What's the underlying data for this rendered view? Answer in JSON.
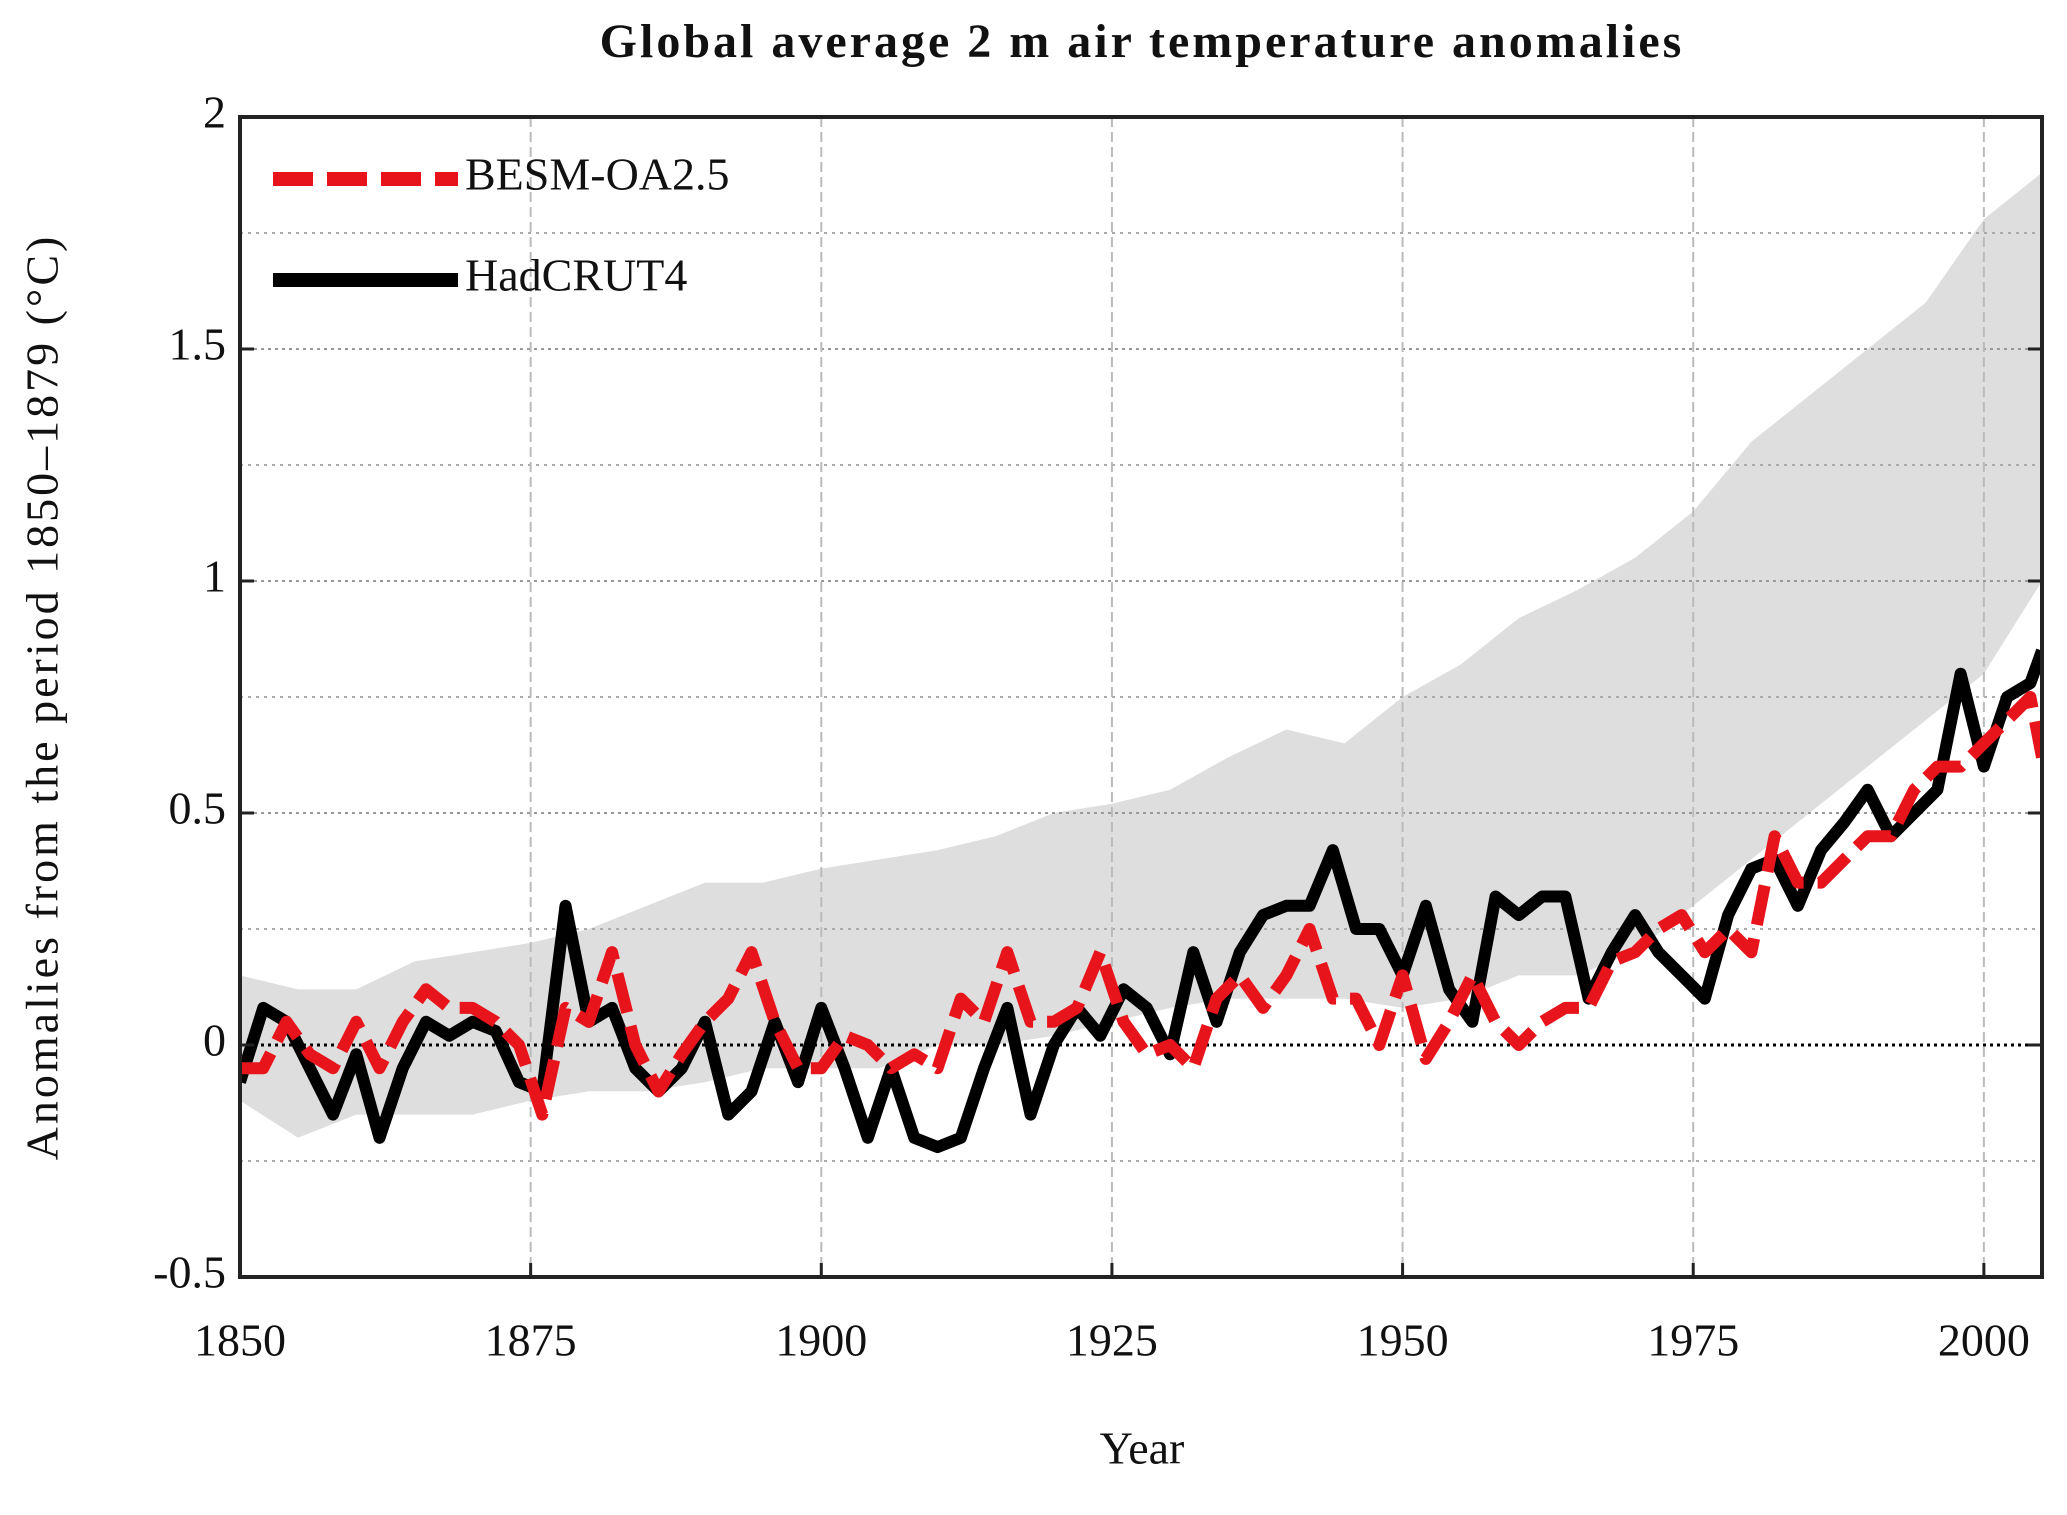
{
  "chart_data": {
    "type": "line",
    "title": "Global average 2 m air temperature anomalies",
    "x_label": "Year",
    "y_label": "Anomalies from the period 1850–1879 (°C)",
    "x": [
      1850,
      1852,
      1854,
      1856,
      1858,
      1860,
      1862,
      1864,
      1866,
      1868,
      1870,
      1872,
      1874,
      1876,
      1878,
      1880,
      1882,
      1884,
      1886,
      1888,
      1890,
      1892,
      1894,
      1896,
      1898,
      1900,
      1902,
      1904,
      1906,
      1908,
      1910,
      1912,
      1914,
      1916,
      1918,
      1920,
      1922,
      1924,
      1926,
      1928,
      1930,
      1932,
      1934,
      1936,
      1938,
      1940,
      1942,
      1944,
      1946,
      1948,
      1950,
      1952,
      1954,
      1956,
      1958,
      1960,
      1962,
      1964,
      1966,
      1968,
      1970,
      1972,
      1974,
      1976,
      1978,
      1980,
      1982,
      1984,
      1986,
      1988,
      1990,
      1992,
      1994,
      1996,
      1998,
      2000,
      2002,
      2004,
      2005
    ],
    "series": [
      {
        "name": "BESM-OA2.5",
        "color": "#e8141b",
        "dashed": true,
        "values": [
          -0.05,
          -0.05,
          0.05,
          -0.02,
          -0.05,
          0.05,
          -0.05,
          0.05,
          0.12,
          0.08,
          0.08,
          0.05,
          0.0,
          -0.15,
          0.08,
          0.05,
          0.2,
          0.0,
          -0.1,
          -0.02,
          0.05,
          0.1,
          0.2,
          0.05,
          -0.05,
          -0.05,
          0.02,
          0.0,
          -0.05,
          -0.02,
          -0.05,
          0.1,
          0.05,
          0.2,
          0.05,
          0.05,
          0.08,
          0.2,
          0.05,
          -0.02,
          0.0,
          -0.05,
          0.1,
          0.15,
          0.08,
          0.15,
          0.25,
          0.1,
          0.1,
          0.0,
          0.15,
          -0.03,
          0.05,
          0.15,
          0.05,
          0.0,
          0.05,
          0.08,
          0.08,
          0.18,
          0.2,
          0.25,
          0.28,
          0.2,
          0.25,
          0.2,
          0.45,
          0.35,
          0.35,
          0.4,
          0.45,
          0.45,
          0.55,
          0.6,
          0.6,
          0.65,
          0.7,
          0.75,
          0.62
        ]
      },
      {
        "name": "HadCRUT4",
        "color": "#000000",
        "dashed": false,
        "values": [
          -0.08,
          0.08,
          0.05,
          -0.05,
          -0.15,
          -0.02,
          -0.2,
          -0.05,
          0.05,
          0.02,
          0.05,
          0.03,
          -0.08,
          -0.1,
          0.3,
          0.05,
          0.08,
          -0.05,
          -0.1,
          -0.05,
          0.05,
          -0.15,
          -0.1,
          0.05,
          -0.08,
          0.08,
          -0.05,
          -0.2,
          -0.05,
          -0.2,
          -0.22,
          -0.2,
          -0.05,
          0.08,
          -0.15,
          0.0,
          0.08,
          0.02,
          0.12,
          0.08,
          -0.02,
          0.2,
          0.05,
          0.2,
          0.28,
          0.3,
          0.3,
          0.42,
          0.25,
          0.25,
          0.15,
          0.3,
          0.12,
          0.05,
          0.32,
          0.28,
          0.32,
          0.32,
          0.1,
          0.2,
          0.28,
          0.2,
          0.15,
          0.1,
          0.28,
          0.38,
          0.4,
          0.3,
          0.42,
          0.48,
          0.55,
          0.45,
          0.5,
          0.55,
          0.8,
          0.6,
          0.75,
          0.78,
          0.85
        ]
      }
    ],
    "band": {
      "color": "#dedede",
      "x": [
        1850,
        1855,
        1860,
        1865,
        1870,
        1875,
        1880,
        1885,
        1890,
        1895,
        1900,
        1905,
        1910,
        1915,
        1920,
        1925,
        1930,
        1935,
        1940,
        1945,
        1950,
        1955,
        1960,
        1965,
        1970,
        1975,
        1980,
        1985,
        1990,
        1995,
        2000,
        2005
      ],
      "upper": [
        0.15,
        0.12,
        0.12,
        0.18,
        0.2,
        0.22,
        0.25,
        0.3,
        0.35,
        0.35,
        0.38,
        0.4,
        0.42,
        0.45,
        0.5,
        0.52,
        0.55,
        0.62,
        0.68,
        0.65,
        0.75,
        0.82,
        0.92,
        0.98,
        1.05,
        1.15,
        1.3,
        1.4,
        1.5,
        1.6,
        1.78,
        1.88
      ],
      "lower": [
        -0.12,
        -0.2,
        -0.15,
        -0.15,
        -0.15,
        -0.12,
        -0.1,
        -0.1,
        -0.08,
        -0.05,
        -0.05,
        -0.05,
        0.0,
        0.0,
        0.02,
        0.05,
        0.08,
        0.1,
        0.1,
        0.1,
        0.08,
        0.1,
        0.15,
        0.15,
        0.2,
        0.3,
        0.4,
        0.5,
        0.6,
        0.7,
        0.8,
        1.0
      ]
    },
    "xlim": [
      1850,
      2005
    ],
    "xticks": [
      1850,
      1875,
      1900,
      1925,
      1950,
      1975,
      2000
    ],
    "ylim": [
      -0.5,
      2
    ],
    "yticks": [
      -0.5,
      0,
      0.5,
      1,
      1.5,
      2
    ],
    "minor_yticks": [
      -0.25,
      0.25,
      0.75,
      1.25,
      1.75
    ],
    "grid": true,
    "legend": "upper left"
  }
}
